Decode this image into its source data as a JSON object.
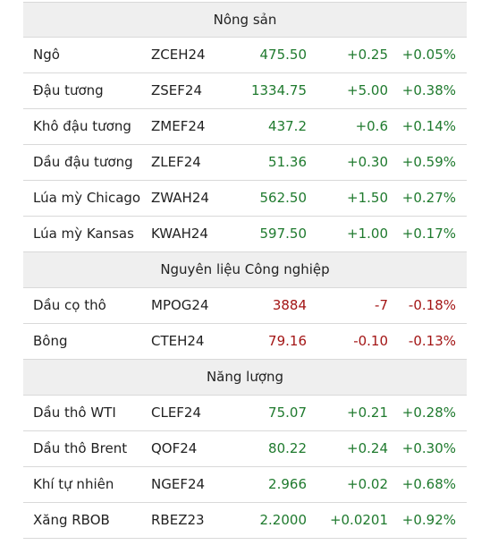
{
  "sections": [
    {
      "title": "Nông sản",
      "rows": [
        {
          "name": "Ngô",
          "code": "ZCEH24",
          "price": "475.50",
          "change": "+0.25",
          "percent": "+0.05%",
          "dir": "up"
        },
        {
          "name": "Đậu tương",
          "code": "ZSEF24",
          "price": "1334.75",
          "change": "+5.00",
          "percent": "+0.38%",
          "dir": "up"
        },
        {
          "name": "Khô đậu tương",
          "code": "ZMEF24",
          "price": "437.2",
          "change": "+0.6",
          "percent": "+0.14%",
          "dir": "up"
        },
        {
          "name": "Dầu đậu tương",
          "code": "ZLEF24",
          "price": "51.36",
          "change": "+0.30",
          "percent": "+0.59%",
          "dir": "up"
        },
        {
          "name": "Lúa mỳ Chicago",
          "code": "ZWAH24",
          "price": "562.50",
          "change": "+1.50",
          "percent": "+0.27%",
          "dir": "up"
        },
        {
          "name": "Lúa mỳ Kansas",
          "code": "KWAH24",
          "price": "597.50",
          "change": "+1.00",
          "percent": "+0.17%",
          "dir": "up"
        }
      ]
    },
    {
      "title": "Nguyên liệu Công nghiệp",
      "rows": [
        {
          "name": "Dầu cọ thô",
          "code": "MPOG24",
          "price": "3884",
          "change": "-7",
          "percent": "-0.18%",
          "dir": "down"
        },
        {
          "name": "Bông",
          "code": "CTEH24",
          "price": "79.16",
          "change": "-0.10",
          "percent": "-0.13%",
          "dir": "down"
        }
      ]
    },
    {
      "title": "Năng lượng",
      "rows": [
        {
          "name": "Dầu thô WTI",
          "code": "CLEF24",
          "price": "75.07",
          "change": "+0.21",
          "percent": "+0.28%",
          "dir": "up"
        },
        {
          "name": "Dầu thô Brent",
          "code": "QOF24",
          "price": "80.22",
          "change": "+0.24",
          "percent": "+0.30%",
          "dir": "up"
        },
        {
          "name": "Khí tự nhiên",
          "code": "NGEF24",
          "price": "2.966",
          "change": "+0.02",
          "percent": "+0.68%",
          "dir": "up"
        },
        {
          "name": "Xăng RBOB",
          "code": "RBEZ23",
          "price": "2.2000",
          "change": "+0.0201",
          "percent": "+0.92%",
          "dir": "up"
        }
      ]
    }
  ],
  "colors": {
    "up": "#1f7a2e",
    "down": "#a31515",
    "section_bg": "#efefef",
    "border": "#d9d9d9"
  }
}
